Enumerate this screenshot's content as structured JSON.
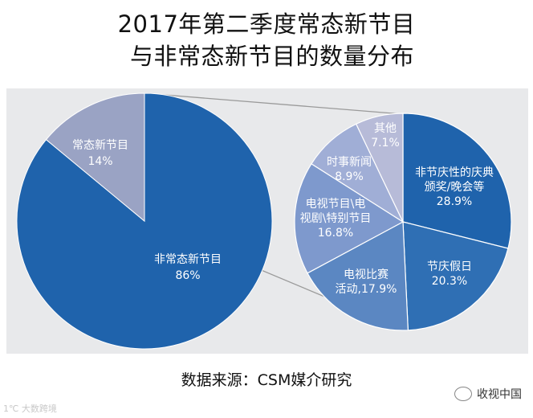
{
  "title": {
    "line1": "2017年第二季度常态新节目",
    "line2": "与非常态新节目的数量分布"
  },
  "source": "数据来源：CSM媒介研究",
  "watermark": "1℃ 大数跨境",
  "wechat": "收视中国",
  "chart_data": [
    {
      "type": "pie",
      "slices": [
        {
          "label": "非常态新节目",
          "value": 86,
          "display": "86%",
          "color": "#1f63ac"
        },
        {
          "label": "常态新节目",
          "value": 14,
          "display": "14%",
          "color": "#9aa3c4"
        }
      ]
    },
    {
      "type": "pie",
      "slices": [
        {
          "label": "非节庆性的庆典颁奖/晚会等",
          "lines": [
            "非节庆性的庆典",
            "颁奖/晚会等",
            "28.9%"
          ],
          "value": 28.9,
          "color": "#1f63ac"
        },
        {
          "label": "节庆假日",
          "lines": [
            "节庆假日",
            "20.3%"
          ],
          "value": 20.3,
          "color": "#2f6fb4"
        },
        {
          "label": "电视比赛活动",
          "lines": [
            "电视比赛",
            "活动,17.9%"
          ],
          "value": 17.9,
          "color": "#5b87c2"
        },
        {
          "label": "电视节目\\电视剧\\特别节目",
          "lines": [
            "电视节目\\电",
            "视剧\\特别节目",
            "16.8%"
          ],
          "value": 16.8,
          "color": "#7e99cd"
        },
        {
          "label": "时事新闻",
          "lines": [
            "时事新闻",
            "8.9%"
          ],
          "value": 8.9,
          "color": "#a0aed6"
        },
        {
          "label": "其他",
          "lines": [
            "其他",
            "7.1%"
          ],
          "value": 7.1,
          "color": "#b7bbd8"
        }
      ]
    }
  ]
}
